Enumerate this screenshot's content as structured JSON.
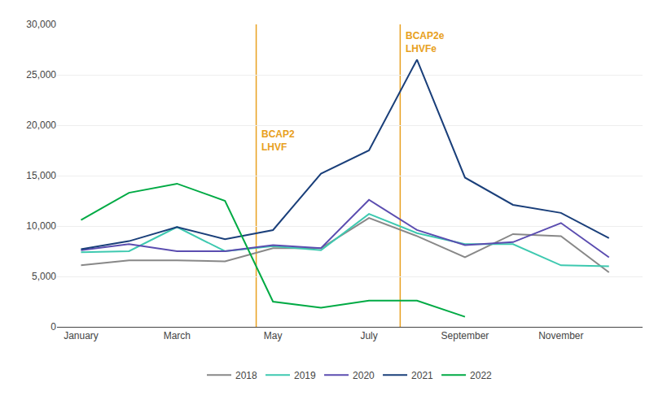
{
  "chart_data": {
    "type": "line",
    "x": [
      1,
      2,
      3,
      4,
      5,
      6,
      7,
      8,
      9,
      10,
      11,
      12
    ],
    "series": [
      {
        "name": "2018",
        "color": "#888888",
        "values": [
          6100,
          6600,
          6600,
          6500,
          7800,
          7800,
          10800,
          9000,
          6900,
          9200,
          9000,
          5400
        ]
      },
      {
        "name": "2019",
        "color": "#3ec9b0",
        "values": [
          7400,
          7500,
          9900,
          7500,
          8000,
          7600,
          11200,
          9300,
          8200,
          8200,
          6100,
          6000
        ]
      },
      {
        "name": "2020",
        "color": "#5b4db0",
        "values": [
          7600,
          8200,
          7500,
          7500,
          8100,
          7800,
          12600,
          9600,
          8100,
          8400,
          10300,
          6900
        ]
      },
      {
        "name": "2021",
        "color": "#1a3f7a",
        "values": [
          7700,
          8500,
          9900,
          8700,
          9600,
          15200,
          17500,
          26500,
          14800,
          12100,
          11300,
          8800
        ]
      },
      {
        "name": "2022",
        "color": "#00aa44",
        "values": [
          10600,
          13300,
          14200,
          12500,
          2500,
          1900,
          2600,
          2600,
          1000,
          null,
          null,
          null
        ]
      }
    ],
    "xlim": [
      0.5,
      12.7
    ],
    "xticks": [
      {
        "value": 1,
        "label": "January"
      },
      {
        "value": 3,
        "label": "March"
      },
      {
        "value": 5,
        "label": "May"
      },
      {
        "value": 7,
        "label": "July"
      },
      {
        "value": 9,
        "label": "September"
      },
      {
        "value": 11,
        "label": "November"
      }
    ],
    "ylim": [
      0,
      30000
    ],
    "yticks": [
      0,
      {
        "value": 5000,
        "label": "5,000"
      },
      {
        "value": 10000,
        "label": "10,000"
      },
      {
        "value": 15000,
        "label": "15,000"
      },
      {
        "value": 20000,
        "label": "20,000"
      },
      {
        "value": 25000,
        "label": "25,000"
      },
      {
        "value": 30000,
        "label": "30,000"
      }
    ],
    "vlines": [
      {
        "x": 4.65,
        "color": "#e8a020"
      },
      {
        "x": 7.65,
        "color": "#e8a020"
      }
    ],
    "annotations": [
      {
        "text": "BCAP2\nLHVF",
        "x": 4.72,
        "y": 18500,
        "color": "#e8a020"
      },
      {
        "text": "BCAP2e\nLHVFe",
        "x": 7.72,
        "y": 28200,
        "color": "#e8a020"
      }
    ],
    "grid": true,
    "legend": "bottom"
  }
}
